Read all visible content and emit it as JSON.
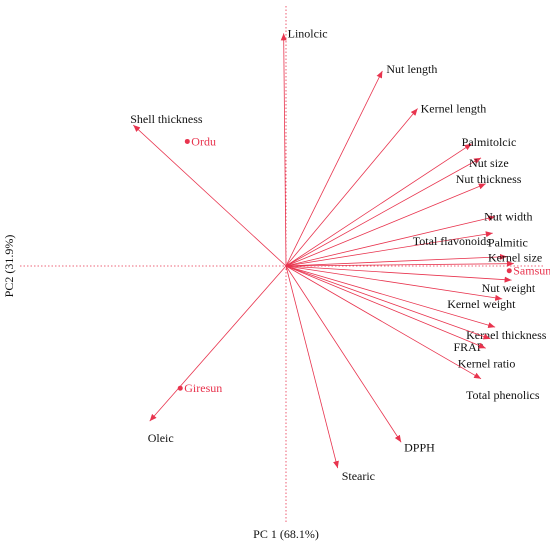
{
  "chart_data": {
    "type": "scatter",
    "subtype": "pca-biplot",
    "title": "",
    "xlabel": "PC 1  (68.1%)",
    "ylabel": "PC2  (31.9%)",
    "xlim": [
      -1,
      1
    ],
    "ylim": [
      -1,
      1
    ],
    "grid": false,
    "legend": "none",
    "origin_axes": "dotted",
    "colors": {
      "vectors": "#e8344e",
      "variable_label": "#111111",
      "sample_label": "#e8344e",
      "axis": "#e8344e"
    },
    "variables": [
      {
        "name": "Linolcic",
        "x": -0.01,
        "y": 0.99
      },
      {
        "name": "Nut length",
        "x": 0.41,
        "y": 0.83
      },
      {
        "name": "Kernel length",
        "x": 0.56,
        "y": 0.67
      },
      {
        "name": "Palmitolcic",
        "x": 0.79,
        "y": 0.52
      },
      {
        "name": "Nut size",
        "x": 0.83,
        "y": 0.46
      },
      {
        "name": "Nut thickness",
        "x": 0.85,
        "y": 0.35
      },
      {
        "name": "Nut width",
        "x": 0.89,
        "y": 0.21
      },
      {
        "name": "Total flavonoids",
        "x": 0.88,
        "y": 0.14
      },
      {
        "name": "Palmitic",
        "x": 0.94,
        "y": 0.04
      },
      {
        "name": "Kernel size",
        "x": 0.97,
        "y": 0.01
      },
      {
        "name": "Nut weight",
        "x": 0.96,
        "y": -0.06
      },
      {
        "name": "Kernel weight",
        "x": 0.92,
        "y": -0.14
      },
      {
        "name": "Kernel thickness",
        "x": 0.89,
        "y": -0.26
      },
      {
        "name": "FRAP",
        "x": 0.87,
        "y": -0.31
      },
      {
        "name": "Kernel ratio",
        "x": 0.85,
        "y": -0.35
      },
      {
        "name": "Total phenolics",
        "x": 0.83,
        "y": -0.48
      },
      {
        "name": "DPPH",
        "x": 0.49,
        "y": -0.75
      },
      {
        "name": "Stearic",
        "x": 0.22,
        "y": -0.86
      },
      {
        "name": "Oleic",
        "x": -0.58,
        "y": -0.66
      },
      {
        "name": "Shell thickness",
        "x": -0.65,
        "y": 0.6
      }
    ],
    "samples": [
      {
        "name": "Ordu",
        "x": -0.42,
        "y": 0.53
      },
      {
        "name": "Samsun",
        "x": 0.95,
        "y": -0.02
      },
      {
        "name": "Giresun",
        "x": -0.45,
        "y": -0.52
      }
    ]
  }
}
